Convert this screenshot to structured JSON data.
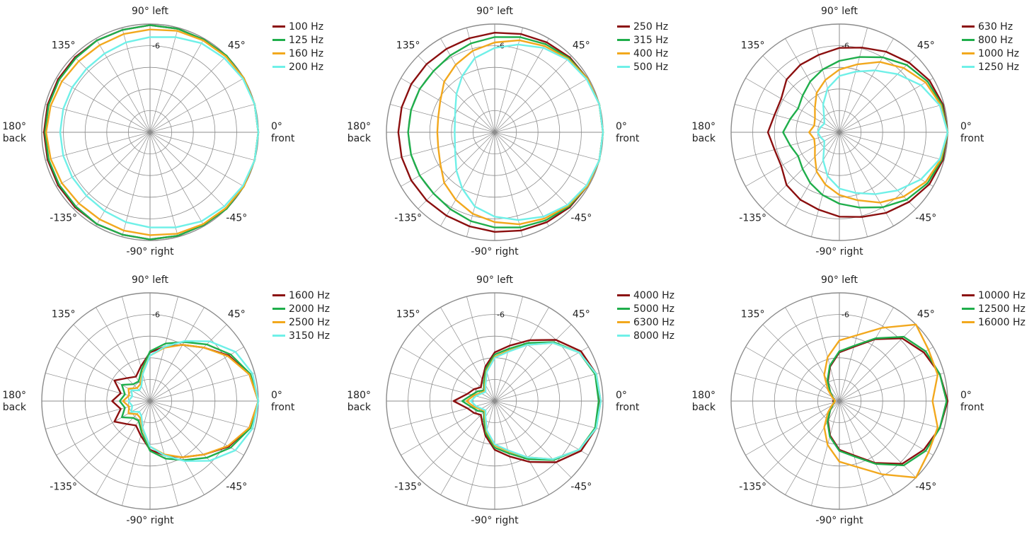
{
  "labels": {
    "top": "90° left",
    "bottom": "-90° right",
    "right_line1": "0°",
    "right_line2": "front",
    "left_line1": "180°",
    "left_line2": "back",
    "d45": "45°",
    "d135": "135°",
    "dm45": "-45°",
    "dm135": "-135°",
    "ring": "-6"
  },
  "colors": {
    "c1": "#8b0f0f",
    "c2": "#1fae4b",
    "c3": "#f2a81d",
    "c4": "#6ff0e8",
    "grid": "#8c8c8c"
  },
  "chart_data": [
    {
      "type": "polar",
      "legend": [
        "100 Hz",
        "125 Hz",
        "160 Hz",
        "200 Hz"
      ],
      "angles_deg": [
        0,
        15,
        30,
        45,
        60,
        75,
        90,
        105,
        120,
        135,
        150,
        165,
        180
      ],
      "series": [
        {
          "name": "100 Hz",
          "color": "c1",
          "values": [
            1.0,
            1.0,
            1.0,
            1.0,
            0.99,
            0.99,
            0.99,
            0.98,
            0.98,
            0.98,
            0.98,
            0.98,
            0.98
          ]
        },
        {
          "name": "125 Hz",
          "color": "c2",
          "values": [
            1.0,
            1.0,
            1.0,
            1.0,
            0.99,
            0.99,
            0.99,
            0.98,
            0.98,
            0.97,
            0.97,
            0.97,
            0.97
          ]
        },
        {
          "name": "160 Hz",
          "color": "c3",
          "values": [
            1.0,
            1.0,
            1.0,
            0.99,
            0.98,
            0.97,
            0.95,
            0.94,
            0.93,
            0.93,
            0.94,
            0.95,
            0.96
          ]
        },
        {
          "name": "200 Hz",
          "color": "c4",
          "values": [
            1.0,
            1.0,
            0.99,
            0.97,
            0.95,
            0.91,
            0.88,
            0.86,
            0.84,
            0.83,
            0.83,
            0.83,
            0.83
          ]
        }
      ]
    },
    {
      "type": "polar",
      "legend": [
        "250 Hz",
        "315 Hz",
        "400 Hz",
        "500 Hz"
      ],
      "angles_deg": [
        0,
        15,
        30,
        45,
        60,
        75,
        90,
        105,
        120,
        135,
        150,
        165,
        180
      ],
      "series": [
        {
          "name": "250 Hz",
          "color": "c1",
          "values": [
            1.0,
            1.0,
            0.99,
            0.98,
            0.96,
            0.94,
            0.92,
            0.9,
            0.89,
            0.89,
            0.89,
            0.89,
            0.89
          ]
        },
        {
          "name": "315 Hz",
          "color": "c2",
          "values": [
            1.0,
            1.0,
            0.99,
            0.97,
            0.94,
            0.91,
            0.88,
            0.85,
            0.82,
            0.8,
            0.8,
            0.8,
            0.8
          ]
        },
        {
          "name": "400 Hz",
          "color": "c3",
          "values": [
            1.0,
            1.0,
            0.99,
            0.96,
            0.92,
            0.88,
            0.83,
            0.78,
            0.72,
            0.66,
            0.58,
            0.54,
            0.53
          ]
        },
        {
          "name": "500 Hz",
          "color": "c4",
          "values": [
            1.0,
            1.0,
            0.98,
            0.95,
            0.9,
            0.84,
            0.78,
            0.71,
            0.6,
            0.5,
            0.42,
            0.38,
            0.37
          ]
        }
      ]
    },
    {
      "type": "polar",
      "legend": [
        "630 Hz",
        "800 Hz",
        "1000 Hz",
        "1250 Hz"
      ],
      "angles_deg": [
        0,
        15,
        30,
        45,
        60,
        75,
        90,
        105,
        120,
        135,
        150,
        165,
        180
      ],
      "series": [
        {
          "name": "630 Hz",
          "color": "c1",
          "values": [
            1.0,
            0.99,
            0.96,
            0.91,
            0.86,
            0.81,
            0.78,
            0.74,
            0.72,
            0.69,
            0.62,
            0.62,
            0.66
          ]
        },
        {
          "name": "800 Hz",
          "color": "c2",
          "values": [
            1.0,
            0.98,
            0.94,
            0.88,
            0.8,
            0.72,
            0.66,
            0.6,
            0.54,
            0.48,
            0.44,
            0.47,
            0.52
          ]
        },
        {
          "name": "1000 Hz",
          "color": "c3",
          "values": [
            1.0,
            0.97,
            0.92,
            0.84,
            0.75,
            0.65,
            0.58,
            0.5,
            0.42,
            0.32,
            0.26,
            0.24,
            0.28
          ]
        },
        {
          "name": "1250 Hz",
          "color": "c4",
          "values": [
            1.0,
            0.96,
            0.87,
            0.76,
            0.66,
            0.58,
            0.52,
            0.42,
            0.3,
            0.2,
            0.16,
            0.18,
            0.2
          ]
        }
      ]
    },
    {
      "type": "polar",
      "legend": [
        "1600 Hz",
        "2000 Hz",
        "2500 Hz",
        "3150 Hz"
      ],
      "angles_deg": [
        0,
        15,
        30,
        45,
        60,
        75,
        90,
        105,
        120,
        135,
        150,
        165,
        180
      ],
      "series": [
        {
          "name": "1600 Hz",
          "color": "c1",
          "values": [
            1.0,
            0.95,
            0.84,
            0.7,
            0.6,
            0.52,
            0.45,
            0.33,
            0.26,
            0.3,
            0.38,
            0.28,
            0.35
          ]
        },
        {
          "name": "2000 Hz",
          "color": "c2",
          "values": [
            1.0,
            0.96,
            0.86,
            0.74,
            0.63,
            0.55,
            0.46,
            0.3,
            0.21,
            0.22,
            0.3,
            0.24,
            0.28
          ]
        },
        {
          "name": "2500 Hz",
          "color": "c3",
          "values": [
            1.0,
            0.95,
            0.83,
            0.7,
            0.6,
            0.51,
            0.42,
            0.27,
            0.18,
            0.17,
            0.23,
            0.2,
            0.25
          ]
        },
        {
          "name": "3150 Hz",
          "color": "c4",
          "values": [
            1.0,
            0.98,
            0.91,
            0.78,
            0.64,
            0.52,
            0.42,
            0.26,
            0.16,
            0.14,
            0.2,
            0.17,
            0.2
          ]
        }
      ]
    },
    {
      "type": "polar",
      "legend": [
        "4000 Hz",
        "5000 Hz",
        "6300 Hz",
        "8000 Hz"
      ],
      "angles_deg": [
        0,
        15,
        30,
        45,
        60,
        75,
        90,
        105,
        120,
        135,
        150,
        165,
        180
      ],
      "series": [
        {
          "name": "4000 Hz",
          "color": "c1",
          "values": [
            0.97,
            0.97,
            0.92,
            0.8,
            0.65,
            0.53,
            0.45,
            0.33,
            0.23,
            0.18,
            0.22,
            0.26,
            0.38
          ]
        },
        {
          "name": "5000 Hz",
          "color": "c2",
          "values": [
            0.96,
            0.96,
            0.9,
            0.77,
            0.62,
            0.5,
            0.43,
            0.31,
            0.2,
            0.14,
            0.18,
            0.22,
            0.3
          ]
        },
        {
          "name": "6300 Hz",
          "color": "c3",
          "values": [
            0.98,
            0.97,
            0.9,
            0.76,
            0.6,
            0.48,
            0.41,
            0.29,
            0.18,
            0.13,
            0.15,
            0.2,
            0.26
          ]
        },
        {
          "name": "8000 Hz",
          "color": "c4",
          "values": [
            0.98,
            0.97,
            0.9,
            0.76,
            0.6,
            0.47,
            0.4,
            0.28,
            0.17,
            0.12,
            0.14,
            0.18,
            0.22
          ]
        }
      ]
    },
    {
      "type": "polar",
      "legend": [
        "10000 Hz",
        "12500 Hz",
        "16000 Hz"
      ],
      "angles_deg": [
        0,
        15,
        30,
        45,
        60,
        75,
        90,
        105,
        120,
        135,
        150,
        165,
        180
      ],
      "series": [
        {
          "name": "10000 Hz",
          "color": "c1",
          "values": [
            1.0,
            0.96,
            0.9,
            0.82,
            0.66,
            0.52,
            0.45,
            0.33,
            0.21,
            0.12,
            0.07,
            0.05,
            0.06
          ]
        },
        {
          "name": "12500 Hz",
          "color": "c2",
          "values": [
            0.99,
            0.96,
            0.92,
            0.84,
            0.67,
            0.53,
            0.46,
            0.34,
            0.22,
            0.12,
            0.07,
            0.05,
            0.05
          ]
        },
        {
          "name": "16000 Hz",
          "color": "c3",
          "values": [
            0.86,
            0.94,
            0.95,
            1.0,
            0.78,
            0.63,
            0.56,
            0.42,
            0.28,
            0.15,
            0.08,
            0.05,
            0.04
          ]
        }
      ]
    }
  ]
}
